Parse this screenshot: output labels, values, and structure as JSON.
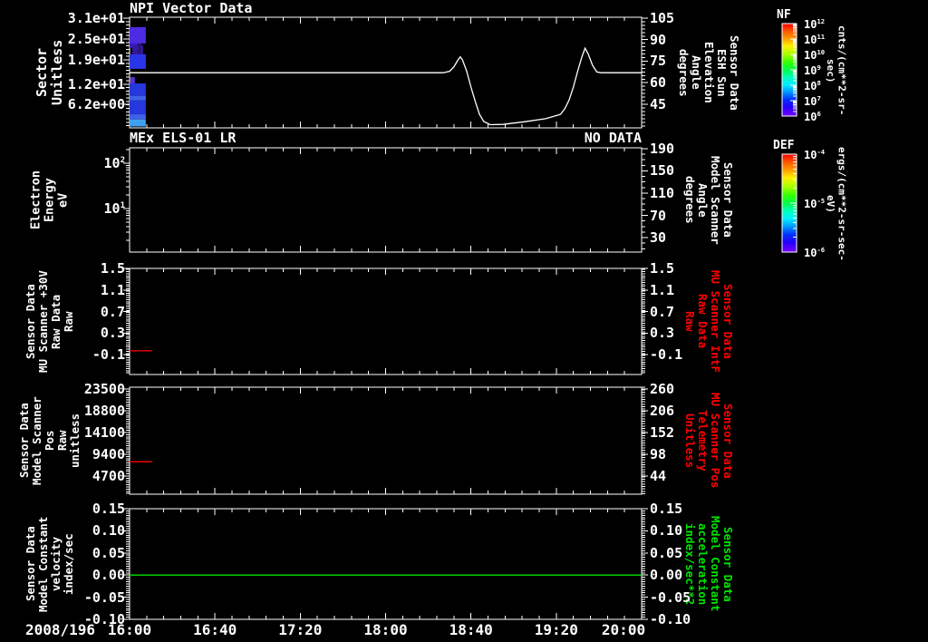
{
  "title": "NPI Vector Data",
  "subtitle_left": "MEx ELS-01 LR",
  "subtitle_right": "NO DATA",
  "date_label": "2008/196",
  "colors": {
    "foreground": "#ffffff",
    "background": "#000000",
    "red_series": "#ff0000",
    "green_series": "#00e600"
  },
  "time_axis": {
    "labels": [
      "16:00",
      "16:40",
      "17:20",
      "18:00",
      "18:40",
      "19:20",
      "20:00"
    ],
    "minutes": [
      0,
      40,
      80,
      120,
      160,
      200,
      240
    ],
    "minor_step_minutes": 8
  },
  "panels": [
    {
      "name": "sector-panel",
      "left_label": "Sector\nUnitless",
      "right_label": "Sensor Data\nESH Sun Elevation\nAngle\ndegrees",
      "right_label_color": "#ffffff",
      "left_ticks": [
        {
          "label": "3.1e+01",
          "value": 31
        },
        {
          "label": "2.5e+01",
          "value": 25
        },
        {
          "label": "1.9e+01",
          "value": 19
        },
        {
          "label": "1.2e+01",
          "value": 12
        },
        {
          "label": "6.2e+00",
          "value": 6.2
        }
      ],
      "right_ticks": [
        {
          "label": "105",
          "value": 105
        },
        {
          "label": "90",
          "value": 90
        },
        {
          "label": "75",
          "value": 75
        },
        {
          "label": "60",
          "value": 60
        },
        {
          "label": "45",
          "value": 45
        }
      ]
    },
    {
      "name": "electron-energy-panel",
      "left_label": "Electron Energy\neV",
      "right_label": "Sensor Data\nModel Scanner\nAngle\ndegrees",
      "right_label_color": "#ffffff",
      "left_ticks": [
        {
          "label": "10^2",
          "value": 100
        },
        {
          "label": "10^1",
          "value": 10
        }
      ],
      "right_ticks": [
        {
          "label": "190",
          "value": 190
        },
        {
          "label": "150",
          "value": 150
        },
        {
          "label": "110",
          "value": 110
        },
        {
          "label": "70",
          "value": 70
        },
        {
          "label": "30",
          "value": 30
        }
      ]
    },
    {
      "name": "mu-scanner-raw-panel",
      "left_label": "Sensor Data\nMU Scanner +30V\nRaw Data\nRaw",
      "right_label": "Sensor Data\nMU Scanner IntF\nRaw Data\nRaw",
      "right_label_color": "#ff0000",
      "left_ticks": [
        {
          "label": "1.5",
          "value": 1.5
        },
        {
          "label": "1.1",
          "value": 1.1
        },
        {
          "label": "0.7",
          "value": 0.7
        },
        {
          "label": "0.3",
          "value": 0.3
        },
        {
          "label": "-0.1",
          "value": -0.1
        }
      ],
      "right_ticks": [
        {
          "label": "1.5",
          "value": 1.5
        },
        {
          "label": "1.1",
          "value": 1.1
        },
        {
          "label": "0.7",
          "value": 0.7
        },
        {
          "label": "0.3",
          "value": 0.3
        },
        {
          "label": "-0.1",
          "value": -0.1
        }
      ]
    },
    {
      "name": "model-scanner-pos-panel",
      "left_label": "Sensor Data\nModel Scanner Pos\nRaw\nunitless",
      "right_label": "Sensor Data\nMU Scanner Pos\nTelemetry\nUnitless",
      "right_label_color": "#ff0000",
      "left_ticks": [
        {
          "label": "23500",
          "value": 23500
        },
        {
          "label": "18800",
          "value": 18800
        },
        {
          "label": "14100",
          "value": 14100
        },
        {
          "label": "9400",
          "value": 9400
        },
        {
          "label": "4700",
          "value": 4700
        }
      ],
      "right_ticks": [
        {
          "label": "260",
          "value": 260
        },
        {
          "label": "206",
          "value": 206
        },
        {
          "label": "152",
          "value": 152
        },
        {
          "label": "98",
          "value": 98
        },
        {
          "label": "44",
          "value": 44
        }
      ]
    },
    {
      "name": "model-constant-panel",
      "left_label": "Sensor Data\nModel Constant\nvelocity\nindex/sec",
      "right_label": "Sensor Data\nModel Constant\nacceleration\nindex/sec**2",
      "right_label_color": "#00e600",
      "left_ticks": [
        {
          "label": "0.15",
          "value": 0.15
        },
        {
          "label": "0.10",
          "value": 0.1
        },
        {
          "label": "0.05",
          "value": 0.05
        },
        {
          "label": "0.00",
          "value": 0.0
        },
        {
          "label": "-0.05",
          "value": -0.05
        },
        {
          "label": "-0.10",
          "value": -0.1
        }
      ],
      "right_ticks": [
        {
          "label": "0.15",
          "value": 0.15
        },
        {
          "label": "0.10",
          "value": 0.1
        },
        {
          "label": "0.05",
          "value": 0.05
        },
        {
          "label": "0.00",
          "value": 0.0
        },
        {
          "label": "-0.05",
          "value": -0.05
        },
        {
          "label": "-0.10",
          "value": -0.1
        }
      ]
    }
  ],
  "colorbars": [
    {
      "title": "NF",
      "unit": "cnts/(cm**2-sr-sec)",
      "tick_labels": [
        "10^12",
        "10^11",
        "10^10",
        "10^9",
        "10^8",
        "10^7",
        "10^6"
      ]
    },
    {
      "title": "DEF",
      "unit": "ergs/(cm**2-sr-sec-eV)",
      "tick_labels": [
        "10^-4",
        "10^-5",
        "10^-6"
      ]
    }
  ],
  "chart_data": [
    {
      "type": "heatmap",
      "panel": 0,
      "name": "NPI sector spectrogram",
      "x_unit": "minutes after 16:00",
      "y_unit": "sector (unitless)",
      "z_unit": "cnts/(cm**2-sr-sec)",
      "cells": [
        [
          0,
          7.6,
          28.4,
          23.7,
          "#4C2BE0"
        ],
        [
          0,
          3.8,
          23.7,
          22.4,
          "#3A1FB8"
        ],
        [
          1.3,
          6.3,
          23.2,
          20.6,
          "#35189E"
        ],
        [
          3.8,
          5.5,
          23.7,
          20.0,
          "#2A1580"
        ],
        [
          0,
          7.6,
          20.6,
          16.4,
          "#2B35E8"
        ],
        [
          0.4,
          2.5,
          14.0,
          12.2,
          "#5A2FD0"
        ],
        [
          0,
          7.6,
          12.2,
          8.6,
          "#2438DC"
        ],
        [
          0,
          7.6,
          8.6,
          7.3,
          "#3E62E8"
        ],
        [
          0,
          7.6,
          7.3,
          3.3,
          "#2438DC"
        ],
        [
          0,
          7.6,
          3.3,
          1.8,
          "#3E62E8"
        ],
        [
          0,
          7.6,
          1.8,
          -0.2,
          "#3FA0EE"
        ]
      ]
    },
    {
      "type": "line",
      "panel": 0,
      "axis": "R",
      "name": "ESH Sun Elevation Angle (degrees)",
      "color": "#ffffff",
      "x_unit": "minutes after 16:00",
      "points": [
        [
          0,
          67
        ],
        [
          147,
          67
        ],
        [
          150,
          68
        ],
        [
          152,
          71
        ],
        [
          154,
          76
        ],
        [
          155,
          78
        ],
        [
          156,
          76
        ],
        [
          158,
          68
        ],
        [
          160,
          57
        ],
        [
          162,
          47
        ],
        [
          164,
          38
        ],
        [
          166,
          33
        ],
        [
          169,
          30.8
        ],
        [
          175,
          31
        ],
        [
          185,
          32.8
        ],
        [
          195,
          35
        ],
        [
          202,
          38
        ],
        [
          204,
          42
        ],
        [
          206,
          48
        ],
        [
          208,
          57
        ],
        [
          210,
          68
        ],
        [
          212,
          78
        ],
        [
          213.5,
          84
        ],
        [
          215,
          80
        ],
        [
          217,
          72
        ],
        [
          219,
          67.5
        ],
        [
          221,
          67
        ],
        [
          240,
          67
        ]
      ]
    },
    {
      "type": "line",
      "panel": 2,
      "axis": "L",
      "name": "MU Scanner +30V Raw Data",
      "color": "#ff0000",
      "x_unit": "minutes after 16:00",
      "points": [
        [
          0,
          -0.03
        ],
        [
          10.6,
          -0.03
        ]
      ]
    },
    {
      "type": "line",
      "panel": 3,
      "axis": "L",
      "name": "Model Scanner Pos Raw",
      "color": "#ff0000",
      "x_unit": "minutes after 16:00",
      "points": [
        [
          0,
          7800
        ],
        [
          10.6,
          7800
        ]
      ]
    },
    {
      "type": "line",
      "panel": 4,
      "axis": "L",
      "name": "Model Constant velocity",
      "color": "#00e600",
      "x_unit": "minutes after 16:00",
      "points": [
        [
          0,
          0.0
        ],
        [
          240,
          0.0
        ]
      ]
    }
  ]
}
